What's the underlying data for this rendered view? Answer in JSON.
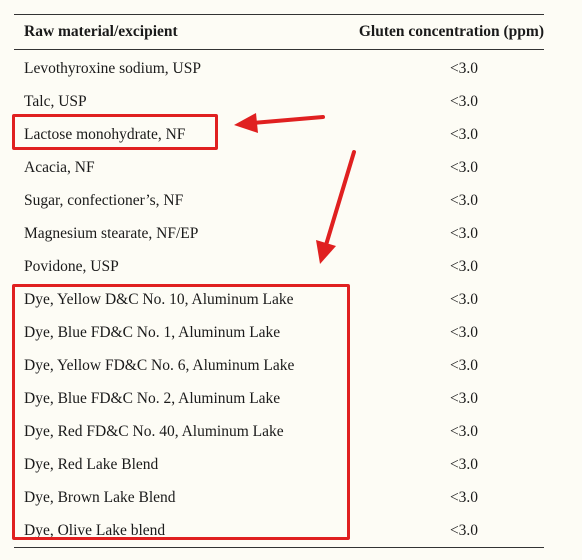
{
  "table": {
    "headers": {
      "material": "Raw material/excipient",
      "gluten": "Gluten concentration (ppm)"
    },
    "rows": [
      {
        "material": "Levothyroxine sodium, USP",
        "gluten": "<3.0"
      },
      {
        "material": "Talc, USP",
        "gluten": "<3.0"
      },
      {
        "material": "Lactose monohydrate, NF",
        "gluten": "<3.0"
      },
      {
        "material": "Acacia, NF",
        "gluten": "<3.0"
      },
      {
        "material": "Sugar, confectioner’s, NF",
        "gluten": "<3.0"
      },
      {
        "material": "Magnesium stearate, NF/EP",
        "gluten": "<3.0"
      },
      {
        "material": "Povidone, USP",
        "gluten": "<3.0"
      },
      {
        "material": "Dye, Yellow D&C No. 10, Aluminum Lake",
        "gluten": "<3.0"
      },
      {
        "material": "Dye, Blue FD&C No. 1, Aluminum Lake",
        "gluten": "<3.0"
      },
      {
        "material": "Dye, Yellow FD&C No. 6, Aluminum Lake",
        "gluten": "<3.0"
      },
      {
        "material": "Dye, Blue FD&C No. 2, Aluminum Lake",
        "gluten": "<3.0"
      },
      {
        "material": "Dye, Red FD&C No. 40, Aluminum Lake",
        "gluten": "<3.0"
      },
      {
        "material": "Dye, Red Lake Blend",
        "gluten": "<3.0"
      },
      {
        "material": "Dye, Brown Lake Blend",
        "gluten": "<3.0"
      },
      {
        "material": "Dye, Olive Lake blend",
        "gluten": "<3.0"
      }
    ]
  },
  "annotations": {
    "color": "#e02020",
    "highlight_box_1_icon": "red-highlight-box",
    "highlight_box_2_icon": "red-highlight-box",
    "arrow_1_icon": "red-arrow-left",
    "arrow_2_icon": "red-arrow-down"
  }
}
